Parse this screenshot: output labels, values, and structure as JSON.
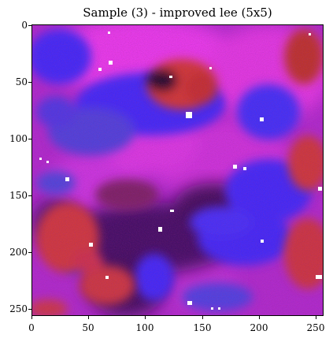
{
  "title": "Sample (3) - improved lee (5x5)",
  "axes": {
    "x_ticks": [
      "0",
      "50",
      "100",
      "150",
      "200",
      "250"
    ],
    "y_ticks": [
      "0",
      "50",
      "100",
      "150",
      "200",
      "250"
    ],
    "xlim": [
      0,
      256
    ],
    "ylim": [
      256,
      0
    ]
  },
  "image": {
    "description_colors": {
      "magenta": "#e23be6",
      "blue": "#3a2cff",
      "red": "#e03a2a",
      "dark": "#2a0a3a",
      "white": "#ffffff"
    }
  }
}
